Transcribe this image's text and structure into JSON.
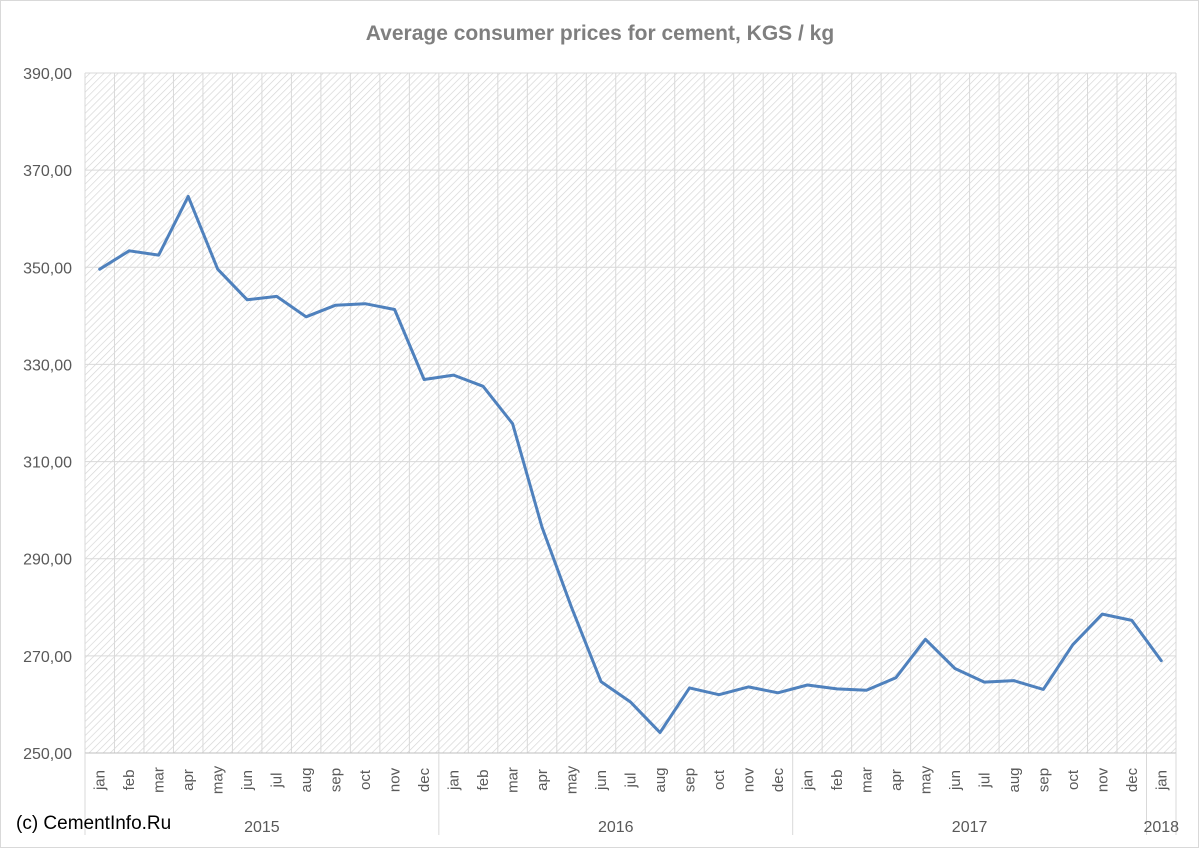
{
  "chart_data": {
    "type": "line",
    "title": "Average consumer prices for cement, KGS / kg",
    "xlabel": "",
    "ylabel": "",
    "ylim": [
      250,
      390
    ],
    "yticks": [
      "250,00",
      "270,00",
      "290,00",
      "310,00",
      "330,00",
      "350,00",
      "370,00",
      "390,00"
    ],
    "ytick_values": [
      250,
      270,
      290,
      310,
      330,
      350,
      370,
      390
    ],
    "categories": [
      "jan",
      "feb",
      "mar",
      "apr",
      "may",
      "jun",
      "jul",
      "aug",
      "sep",
      "oct",
      "nov",
      "dec",
      "jan",
      "feb",
      "mar",
      "apr",
      "may",
      "jun",
      "jul",
      "aug",
      "sep",
      "oct",
      "nov",
      "dec",
      "jan",
      "feb",
      "mar",
      "apr",
      "may",
      "jun",
      "jul",
      "aug",
      "sep",
      "oct",
      "nov",
      "dec",
      "jan"
    ],
    "year_groups": [
      {
        "label": "2015",
        "count": 12
      },
      {
        "label": "2016",
        "count": 12
      },
      {
        "label": "2017",
        "count": 12
      },
      {
        "label": "2018",
        "count": 1
      }
    ],
    "series": [
      {
        "color": "#4f81bd",
        "values": [
          349.6,
          353.4,
          352.5,
          364.6,
          349.6,
          343.3,
          344.0,
          339.8,
          342.2,
          342.5,
          341.3,
          326.9,
          327.8,
          325.5,
          317.8,
          296.5,
          280.0,
          264.7,
          260.5,
          254.2,
          263.4,
          262.0,
          263.6,
          262.4,
          264.0,
          263.2,
          262.9,
          265.5,
          273.4,
          267.4,
          264.6,
          264.9,
          263.1,
          272.3,
          278.6,
          277.3,
          269.0
        ]
      }
    ],
    "grid": true,
    "plot_background": "diagonal-hatch",
    "legend": "none"
  },
  "footer": {
    "copyright": "(c) CementInfo.Ru"
  }
}
